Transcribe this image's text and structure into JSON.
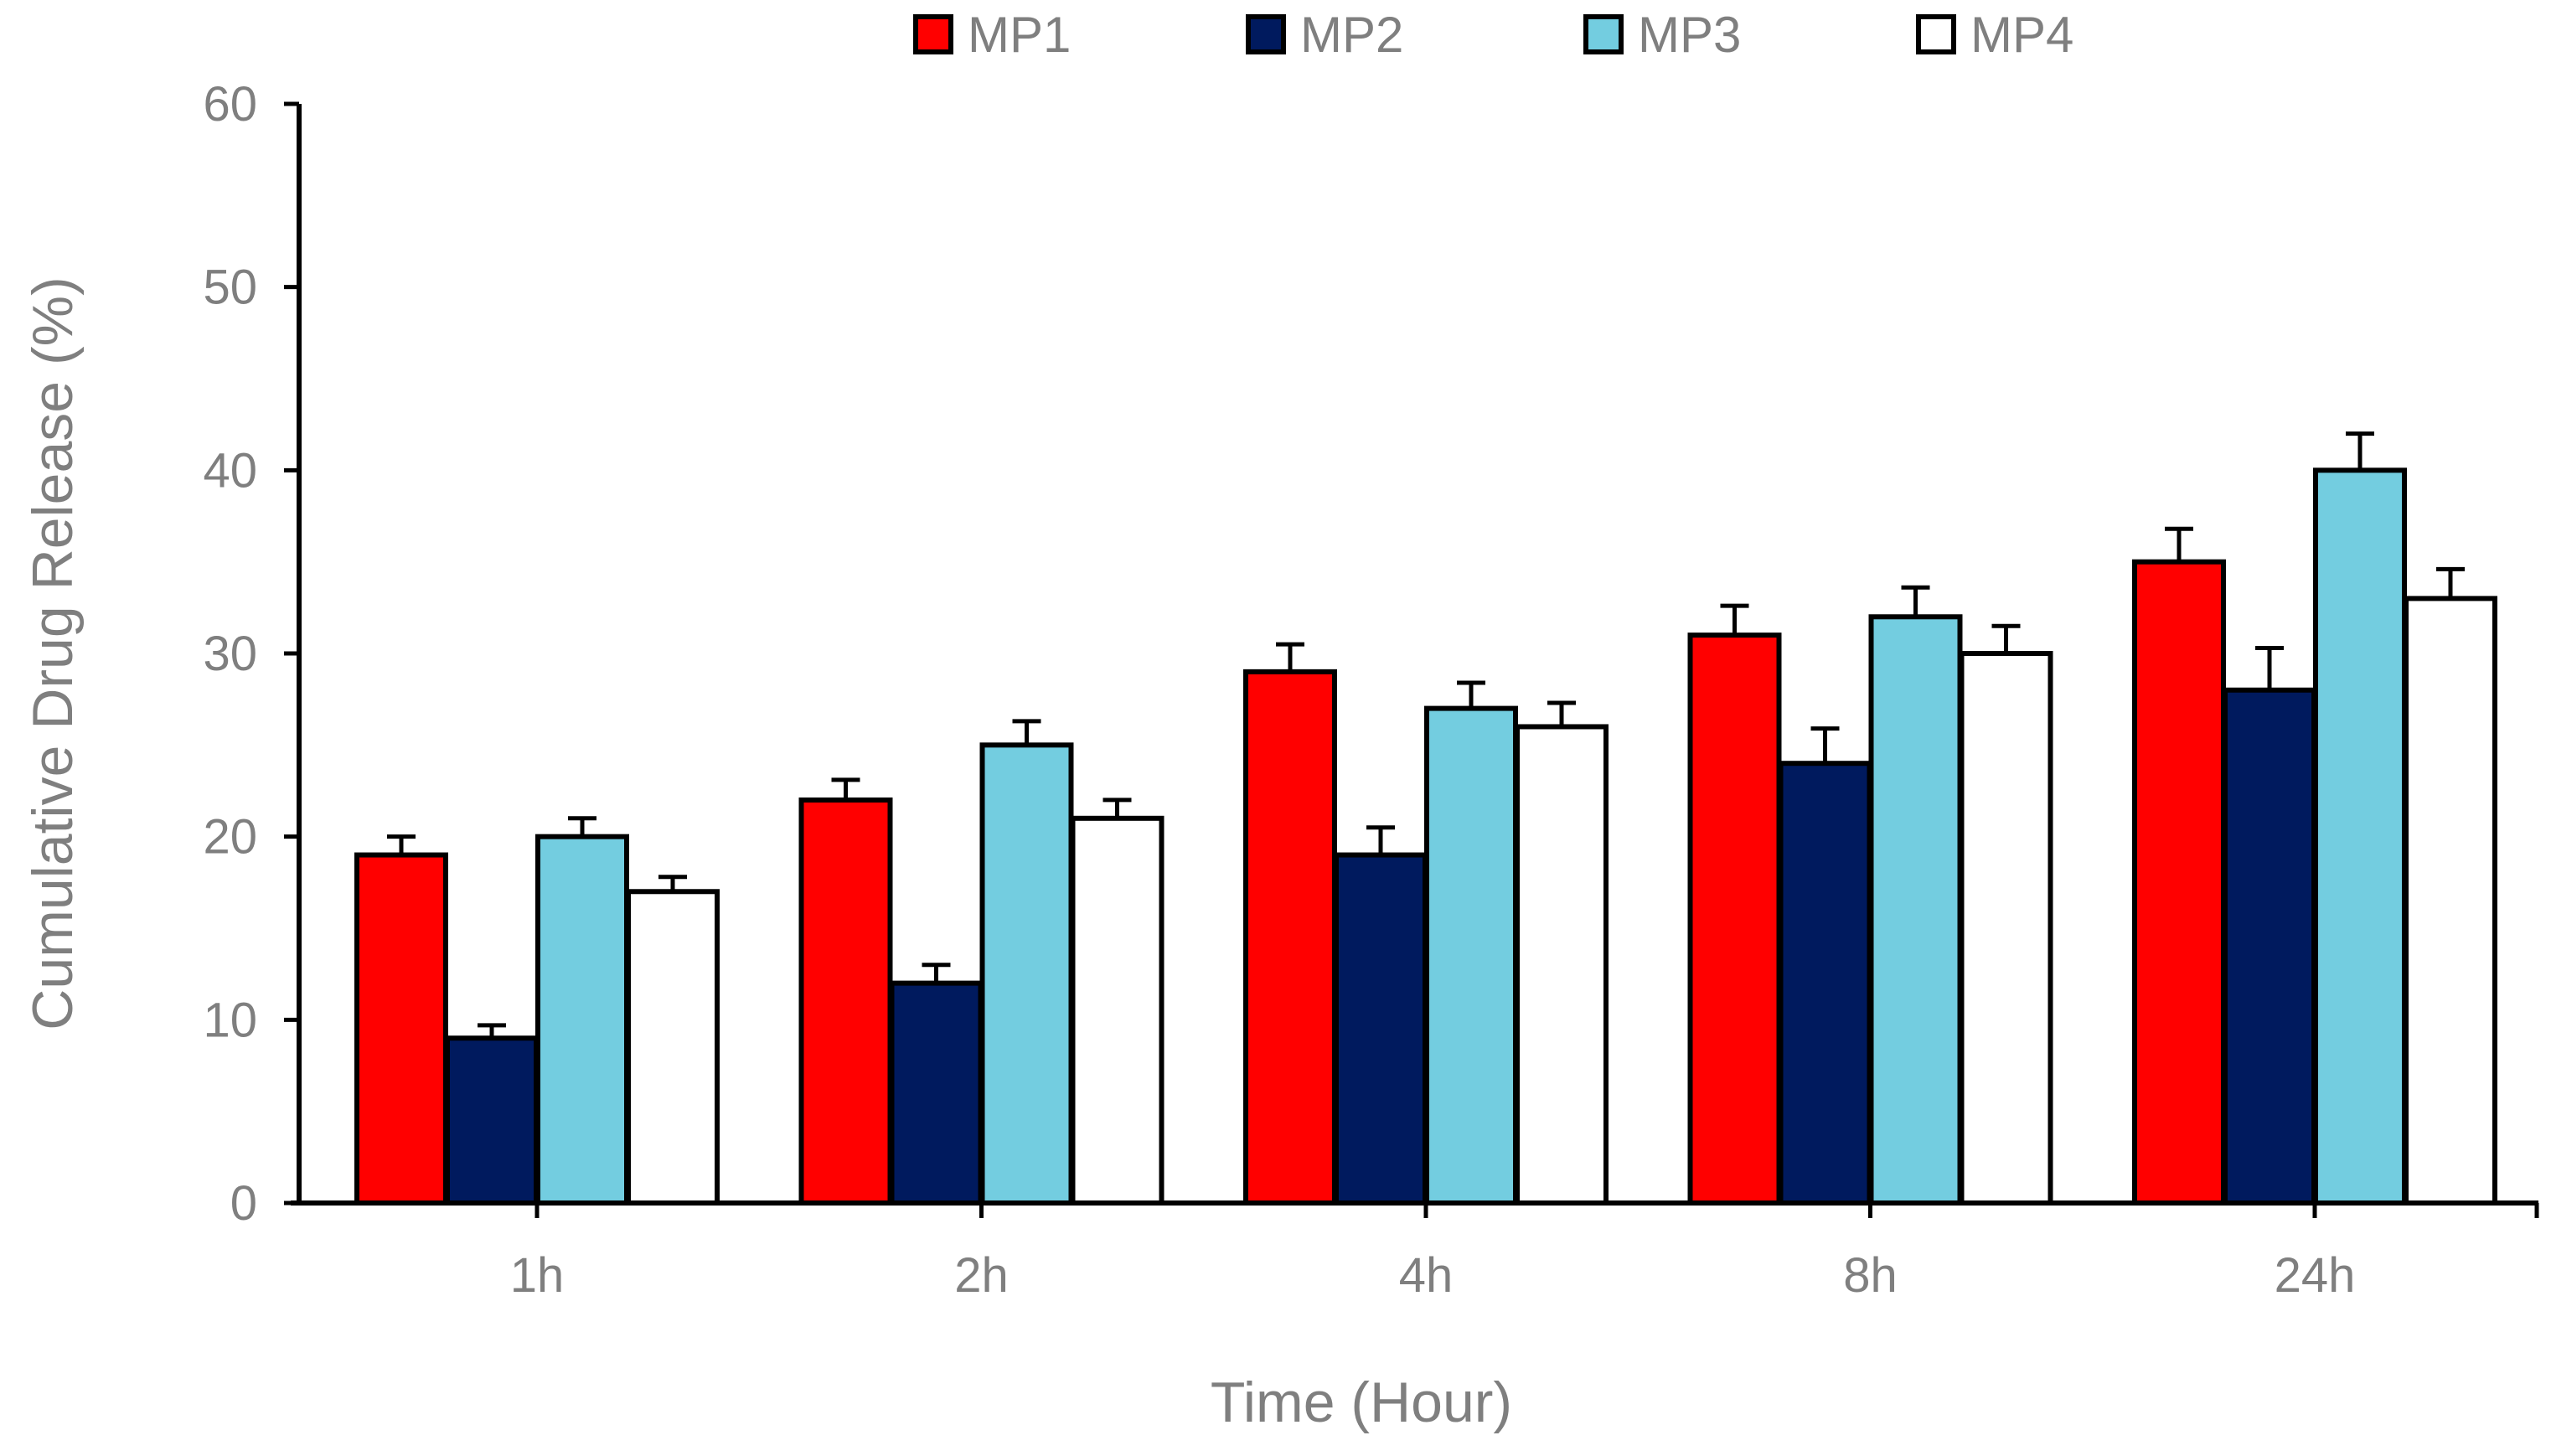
{
  "chart_data": {
    "type": "bar",
    "title": "",
    "xlabel": "Time (Hour)",
    "ylabel": "Cumulative Drug Release (%)",
    "ylim": [
      0,
      60
    ],
    "yticks": [
      "0",
      "10",
      "20",
      "30",
      "40",
      "50",
      "60"
    ],
    "categories": [
      "1h",
      "2h",
      "4h",
      "8h",
      "24h"
    ],
    "grid": false,
    "legend_position": "top",
    "series": [
      {
        "name": "MP1",
        "color": "#ff0000",
        "values": [
          19,
          22,
          29,
          31,
          35
        ],
        "errors": [
          1.0,
          1.1,
          1.5,
          1.6,
          1.8
        ]
      },
      {
        "name": "MP2",
        "color": "#001a5e",
        "values": [
          9,
          12,
          19,
          24,
          28
        ],
        "errors": [
          0.7,
          1.0,
          1.5,
          1.9,
          2.3
        ]
      },
      {
        "name": "MP3",
        "color": "#73cde0",
        "values": [
          20,
          25,
          27,
          32,
          40
        ],
        "errors": [
          1.0,
          1.3,
          1.4,
          1.6,
          2.0
        ]
      },
      {
        "name": "MP4",
        "color": "#ffffff",
        "values": [
          17,
          21,
          26,
          30,
          33
        ],
        "errors": [
          0.8,
          1.0,
          1.3,
          1.5,
          1.6
        ]
      }
    ]
  }
}
